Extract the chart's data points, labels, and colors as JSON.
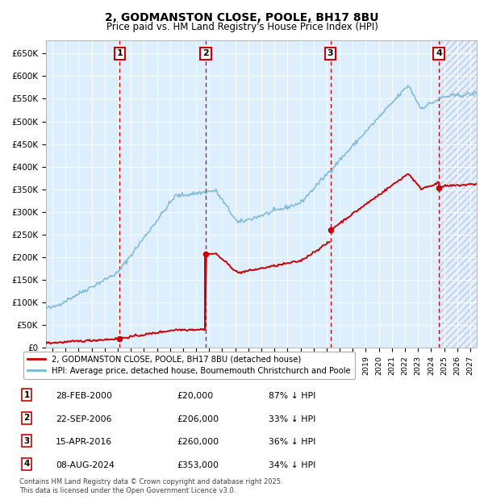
{
  "title": "2, GODMANSTON CLOSE, POOLE, BH17 8BU",
  "subtitle": "Price paid vs. HM Land Registry's House Price Index (HPI)",
  "xlim": [
    1994.5,
    2027.5
  ],
  "ylim": [
    0,
    680000
  ],
  "yticks": [
    0,
    50000,
    100000,
    150000,
    200000,
    250000,
    300000,
    350000,
    400000,
    450000,
    500000,
    550000,
    600000,
    650000
  ],
  "ytick_labels": [
    "£0",
    "£50K",
    "£100K",
    "£150K",
    "£200K",
    "£250K",
    "£300K",
    "£350K",
    "£400K",
    "£450K",
    "£500K",
    "£550K",
    "£600K",
    "£650K"
  ],
  "sale_color": "#cc0000",
  "hpi_color": "#7ab8d9",
  "vline_color": "#cc0000",
  "bg_color": "#ddeeff",
  "grid_color": "#ffffff",
  "sales": [
    {
      "date": 2000.15,
      "price": 20000,
      "label": "1"
    },
    {
      "date": 2006.73,
      "price": 206000,
      "label": "2"
    },
    {
      "date": 2016.29,
      "price": 260000,
      "label": "3"
    },
    {
      "date": 2024.6,
      "price": 353000,
      "label": "4"
    }
  ],
  "legend_entries": [
    "2, GODMANSTON CLOSE, POOLE, BH17 8BU (detached house)",
    "HPI: Average price, detached house, Bournemouth Christchurch and Poole"
  ],
  "table_rows": [
    {
      "num": "1",
      "date": "28-FEB-2000",
      "price": "£20,000",
      "pct": "87% ↓ HPI"
    },
    {
      "num": "2",
      "date": "22-SEP-2006",
      "price": "£206,000",
      "pct": "33% ↓ HPI"
    },
    {
      "num": "3",
      "date": "15-APR-2016",
      "price": "£260,000",
      "pct": "36% ↓ HPI"
    },
    {
      "num": "4",
      "date": "08-AUG-2024",
      "price": "£353,000",
      "pct": "34% ↓ HPI"
    }
  ],
  "footnote": "Contains HM Land Registry data © Crown copyright and database right 2025.\nThis data is licensed under the Open Government Licence v3.0."
}
